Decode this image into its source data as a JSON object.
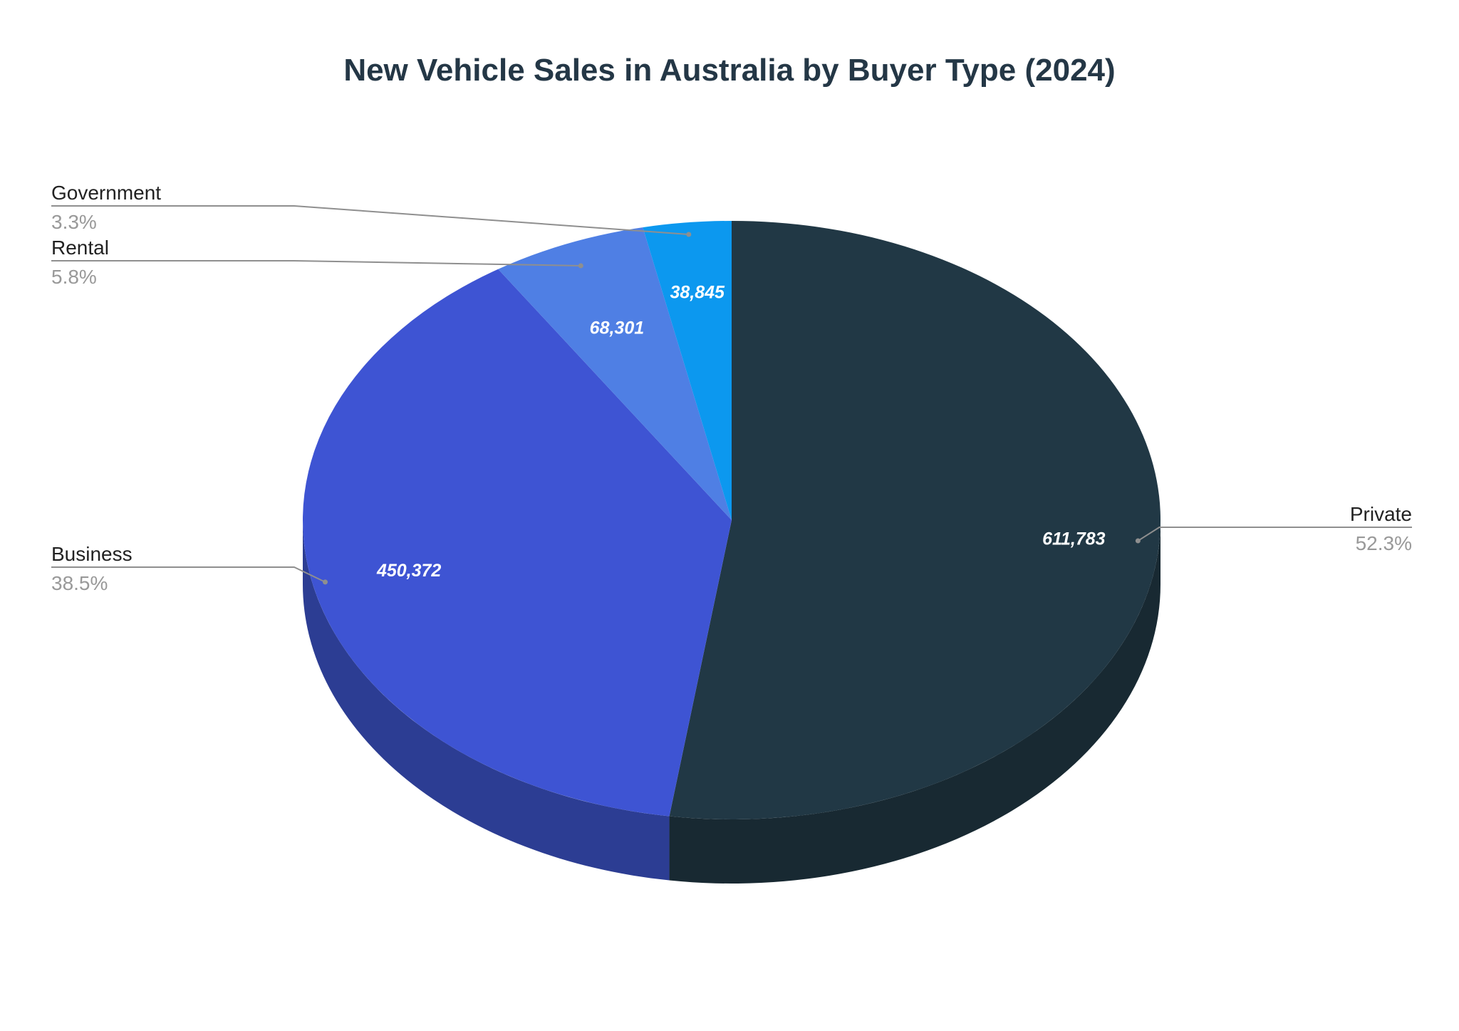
{
  "chart_data": {
    "type": "pie",
    "title": "New Vehicle Sales in Australia by Buyer Type (2024)",
    "slices": [
      {
        "label": "Private",
        "value": 611783,
        "value_label": "611,783",
        "percent_label": "52.3%",
        "color": "#213845",
        "side_color": "#182932"
      },
      {
        "label": "Business",
        "value": 450372,
        "value_label": "450,372",
        "percent_label": "38.5%",
        "color": "#3e54d3",
        "side_color": "#2c3d93"
      },
      {
        "label": "Rental",
        "value": 68301,
        "value_label": "68,301",
        "percent_label": "5.8%",
        "color": "#4f7fe4",
        "side_color": "#3a5fae"
      },
      {
        "label": "Government",
        "value": 38845,
        "value_label": "38,845",
        "percent_label": "3.3%",
        "color": "#0c98ef",
        "side_color": "#0a74b6"
      }
    ],
    "legend": "none",
    "three_d": true
  },
  "colors": {
    "title": "#243746",
    "category_label": "#222222",
    "percent_label": "#999999",
    "leader_line": "#8f8f8f",
    "value_label": "#ffffff"
  }
}
